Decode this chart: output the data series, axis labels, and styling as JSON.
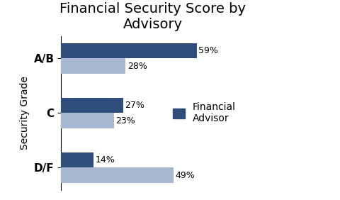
{
  "title": "Financial Security Score by\nAdvisory",
  "ylabel": "Security Grade",
  "categories": [
    "D/F",
    "C",
    "A/B"
  ],
  "financial_advisor": [
    14,
    27,
    59
  ],
  "no_advisor": [
    49,
    23,
    28
  ],
  "color_advisor": "#2E4D7B",
  "color_no_advisor": "#A8B8D0",
  "legend_label": "Financial\nAdvisor",
  "bar_height": 0.28,
  "xlim": [
    0,
    80
  ],
  "title_fontsize": 14,
  "label_fontsize": 9,
  "tick_fontsize": 11,
  "ylabel_fontsize": 10
}
